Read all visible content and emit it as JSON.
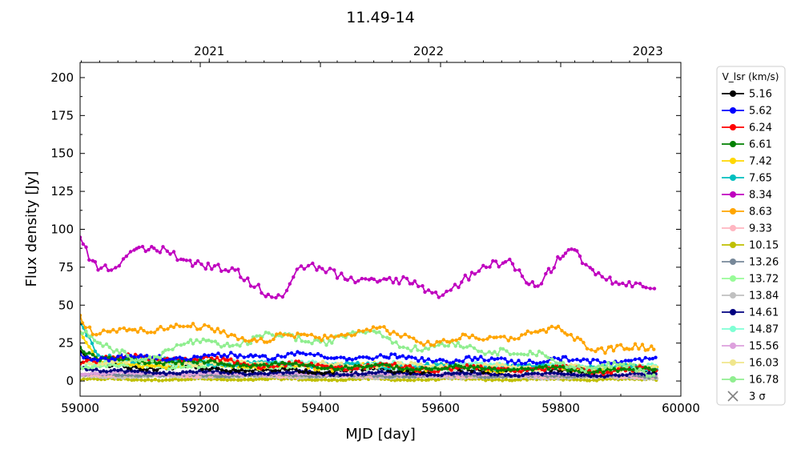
{
  "chart_data": {
    "type": "line",
    "title": "11.49-14",
    "xlabel": "MJD [day]",
    "ylabel": "Flux density [Jy]",
    "xlim": [
      59000,
      60000
    ],
    "ylim": [
      -10,
      210
    ],
    "x_ticks": [
      59000,
      59200,
      59400,
      59600,
      59800,
      60000
    ],
    "y_ticks": [
      0,
      25,
      50,
      75,
      100,
      125,
      150,
      175,
      200
    ],
    "top_axis_ticks": [
      {
        "label": "2021",
        "mjd": 59215
      },
      {
        "label": "2022",
        "mjd": 59580
      },
      {
        "label": "2023",
        "mjd": 59945
      }
    ],
    "grid": false,
    "legend_title": "V_lsr (km/s)",
    "legend_placement": "outside-right",
    "x_range_data": [
      59000,
      59960
    ],
    "series": [
      {
        "name": "5.16",
        "color": "#000000",
        "base": 7,
        "amp": 2,
        "jitter": 1.2,
        "points": [
          [
            59000,
            19
          ],
          [
            59030,
            10
          ],
          [
            59300,
            7
          ],
          [
            59960,
            7
          ]
        ]
      },
      {
        "name": "5.62",
        "color": "#0000ff",
        "base": 15,
        "amp": 2.5,
        "jitter": 1.5,
        "points": [
          [
            59000,
            18
          ],
          [
            59040,
            15
          ],
          [
            59360,
            17
          ],
          [
            59600,
            14
          ],
          [
            59960,
            13
          ]
        ]
      },
      {
        "name": "6.24",
        "color": "#ff0000",
        "base": 12,
        "amp": 3,
        "jitter": 1.5,
        "points": [
          [
            59000,
            14
          ],
          [
            59150,
            16
          ],
          [
            59300,
            11
          ],
          [
            59500,
            9
          ],
          [
            59700,
            8
          ],
          [
            59960,
            7
          ]
        ]
      },
      {
        "name": "6.61",
        "color": "#008000",
        "base": 12,
        "amp": 2,
        "jitter": 1.2,
        "points": [
          [
            59000,
            22
          ],
          [
            59030,
            14
          ],
          [
            59200,
            12
          ],
          [
            59500,
            9
          ],
          [
            59960,
            7
          ]
        ]
      },
      {
        "name": "7.42",
        "color": "#ffd700",
        "base": 9,
        "amp": 3,
        "jitter": 1.5,
        "points": [
          [
            59000,
            33
          ],
          [
            59030,
            12
          ],
          [
            59300,
            10
          ],
          [
            59600,
            9
          ],
          [
            59960,
            8
          ]
        ]
      },
      {
        "name": "7.65",
        "color": "#00bfbf",
        "base": 10,
        "amp": 2,
        "jitter": 1.3,
        "points": [
          [
            59000,
            38
          ],
          [
            59030,
            16
          ],
          [
            59200,
            12
          ],
          [
            59500,
            10
          ],
          [
            59960,
            9
          ]
        ]
      },
      {
        "name": "8.34",
        "color": "#bf00bf",
        "base": 70,
        "amp": 7,
        "jitter": 3,
        "points": [
          [
            59000,
            98
          ],
          [
            59020,
            80
          ],
          [
            59060,
            78
          ],
          [
            59150,
            87
          ],
          [
            59220,
            75
          ],
          [
            59300,
            62
          ],
          [
            59340,
            60
          ],
          [
            59360,
            74
          ],
          [
            59420,
            70
          ],
          [
            59480,
            68
          ],
          [
            59550,
            62
          ],
          [
            59600,
            60
          ],
          [
            59660,
            72
          ],
          [
            59720,
            77
          ],
          [
            59760,
            65
          ],
          [
            59810,
            85
          ],
          [
            59860,
            70
          ],
          [
            59900,
            68
          ],
          [
            59960,
            59
          ]
        ]
      },
      {
        "name": "8.63",
        "color": "#ffa500",
        "base": 30,
        "amp": 4,
        "jitter": 2,
        "points": [
          [
            59000,
            43
          ],
          [
            59025,
            30
          ],
          [
            59150,
            37
          ],
          [
            59300,
            27
          ],
          [
            59400,
            30
          ],
          [
            59500,
            33
          ],
          [
            59600,
            25
          ],
          [
            59700,
            30
          ],
          [
            59800,
            33
          ],
          [
            59860,
            22
          ],
          [
            59960,
            20
          ]
        ]
      },
      {
        "name": "9.33",
        "color": "#ffb6c1",
        "base": 3,
        "amp": 1,
        "jitter": 0.6,
        "points": [
          [
            59000,
            4
          ],
          [
            59960,
            3
          ]
        ]
      },
      {
        "name": "10.15",
        "color": "#bfbf00",
        "base": 1,
        "amp": 0.8,
        "jitter": 0.5,
        "points": [
          [
            59000,
            1
          ],
          [
            59960,
            1
          ]
        ]
      },
      {
        "name": "13.26",
        "color": "#778899",
        "base": 3,
        "amp": 1,
        "jitter": 0.6,
        "points": [
          [
            59000,
            4
          ],
          [
            59960,
            3
          ]
        ]
      },
      {
        "name": "13.72",
        "color": "#98fb98",
        "base": 8,
        "amp": 2,
        "jitter": 1,
        "points": [
          [
            59000,
            10
          ],
          [
            59960,
            8
          ]
        ]
      },
      {
        "name": "13.84",
        "color": "#c0c0c0",
        "base": 2,
        "amp": 1,
        "jitter": 0.5,
        "points": [
          [
            59000,
            3
          ],
          [
            59960,
            2
          ]
        ]
      },
      {
        "name": "14.61",
        "color": "#000080",
        "base": 5,
        "amp": 1.5,
        "jitter": 0.8,
        "points": [
          [
            59000,
            10
          ],
          [
            59040,
            6
          ],
          [
            59960,
            4
          ]
        ]
      },
      {
        "name": "14.87",
        "color": "#7fffd4",
        "base": 9,
        "amp": 2,
        "jitter": 1.2,
        "points": [
          [
            59000,
            13
          ],
          [
            59960,
            9
          ]
        ]
      },
      {
        "name": "15.56",
        "color": "#dda0dd",
        "base": 4,
        "amp": 1,
        "jitter": 0.7,
        "points": [
          [
            59000,
            5
          ],
          [
            59960,
            4
          ]
        ]
      },
      {
        "name": "16.03",
        "color": "#f0e68c",
        "base": 10,
        "amp": 2,
        "jitter": 1.2,
        "points": [
          [
            59000,
            13
          ],
          [
            59960,
            8
          ]
        ]
      },
      {
        "name": "16.78",
        "color": "#90ee90",
        "base": 20,
        "amp": 6,
        "jitter": 2,
        "points": [
          [
            59000,
            34
          ],
          [
            59040,
            20
          ],
          [
            59100,
            16
          ],
          [
            59200,
            24
          ],
          [
            59300,
            28
          ],
          [
            59400,
            28
          ],
          [
            59500,
            31
          ],
          [
            59570,
            22
          ],
          [
            59700,
            22
          ],
          [
            59760,
            15
          ],
          [
            59850,
            10
          ],
          [
            59960,
            5
          ]
        ]
      }
    ],
    "legend_extra": [
      {
        "label": "3 σ",
        "color": "#808080",
        "marker": "x"
      }
    ]
  }
}
